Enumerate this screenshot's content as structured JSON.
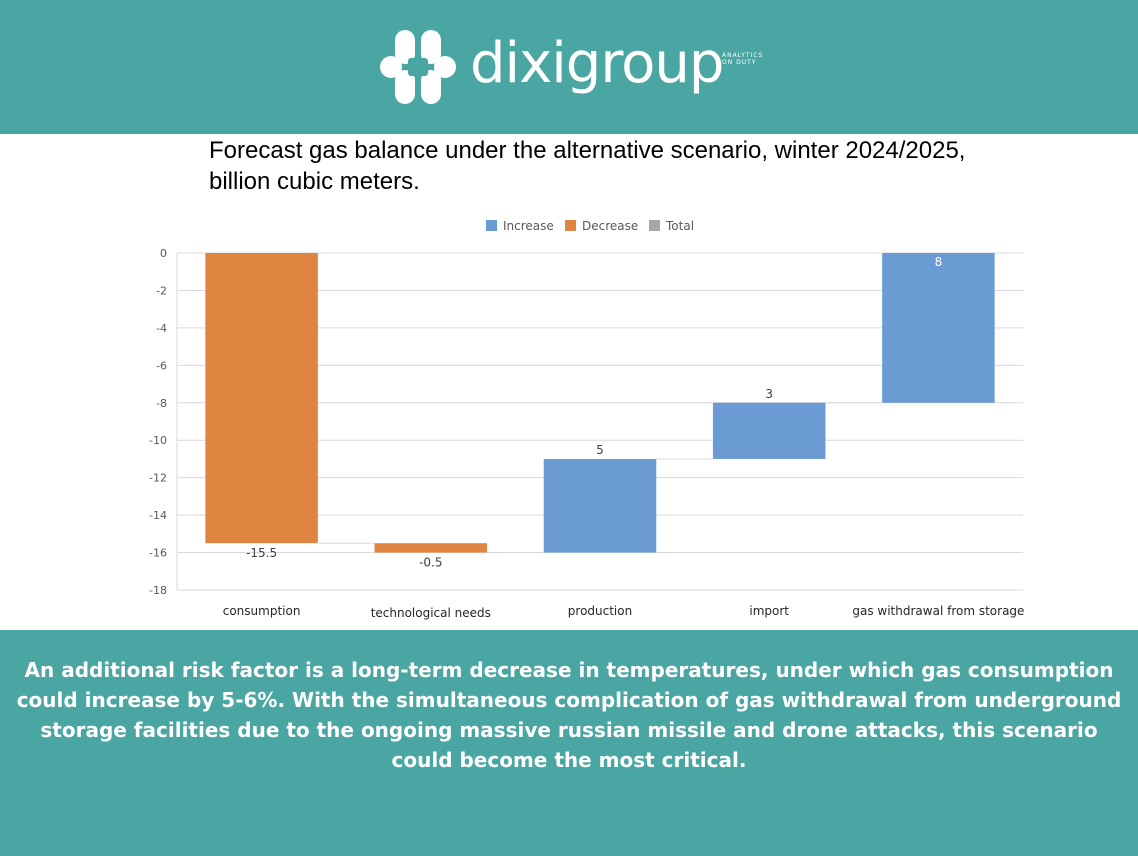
{
  "brand": {
    "name": "dixigroup",
    "tagline_line1": "ANALYTICS",
    "tagline_line2": "ON DUTY"
  },
  "footer": {
    "text": "An additional risk factor is a long-term decrease in temperatures, under which gas consumption could increase by 5-6%. With the simultaneous complication of gas withdrawal from underground storage facilities due to the ongoing massive russian missile and drone attacks, this scenario could become the most critical."
  },
  "chart_data": {
    "type": "bar",
    "subtype": "waterfall",
    "title": "Forecast gas balance under the alternative scenario, winter 2024/2025, billion cubic meters.",
    "xlabel": "",
    "ylabel": "",
    "ylim": [
      -18,
      0
    ],
    "yticks": [
      0,
      -2,
      -4,
      -6,
      -8,
      -10,
      -12,
      -14,
      -16,
      -18
    ],
    "grid": true,
    "legend": {
      "placement": "top-center",
      "entries": [
        {
          "name": "Increase",
          "color": "#6a9bd2"
        },
        {
          "name": "Decrease",
          "color": "#e08442"
        },
        {
          "name": "Total",
          "color": "#a6a6a6"
        }
      ]
    },
    "categories": [
      "consumption",
      "technological needs",
      "production",
      "import",
      "gas withdrawal from storage"
    ],
    "values": [
      -15.5,
      -0.5,
      5,
      3,
      8
    ],
    "data_labels": [
      "-15.5",
      "-0.5",
      "5",
      "3",
      "8"
    ],
    "colors": {
      "increase": "#6a9bd2",
      "decrease": "#e08442",
      "total": "#a6a6a6"
    }
  }
}
